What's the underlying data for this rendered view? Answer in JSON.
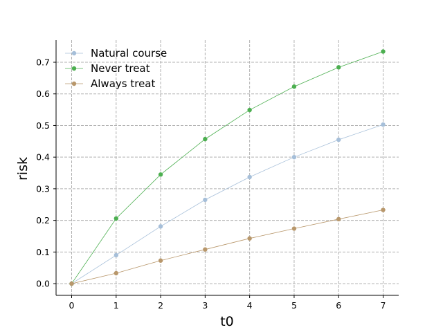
{
  "chart_data": {
    "type": "line",
    "xlabel": "t0",
    "ylabel": "risk",
    "x": [
      0,
      1,
      2,
      3,
      4,
      5,
      6,
      7
    ],
    "xlim": [
      -0.35,
      7.35
    ],
    "ylim": [
      -0.037,
      0.77
    ],
    "xticks": [
      0,
      1,
      2,
      3,
      4,
      5,
      6,
      7
    ],
    "yticks": [
      0.0,
      0.1,
      0.2,
      0.3,
      0.4,
      0.5,
      0.6,
      0.7
    ],
    "ytick_labels": [
      "0.0",
      "0.1",
      "0.2",
      "0.3",
      "0.4",
      "0.5",
      "0.6",
      "0.7"
    ],
    "grid": true,
    "legend_position": "top-left",
    "series": [
      {
        "name": "Natural course",
        "color": "#a6bfd9",
        "values": [
          0.0,
          0.09,
          0.181,
          0.265,
          0.337,
          0.4,
          0.455,
          0.503
        ]
      },
      {
        "name": "Never treat",
        "color": "#4caf50",
        "values": [
          0.0,
          0.206,
          0.345,
          0.457,
          0.549,
          0.623,
          0.684,
          0.734
        ]
      },
      {
        "name": "Always treat",
        "color": "#b8976b",
        "values": [
          0.0,
          0.033,
          0.073,
          0.108,
          0.143,
          0.174,
          0.204,
          0.233
        ]
      }
    ]
  }
}
